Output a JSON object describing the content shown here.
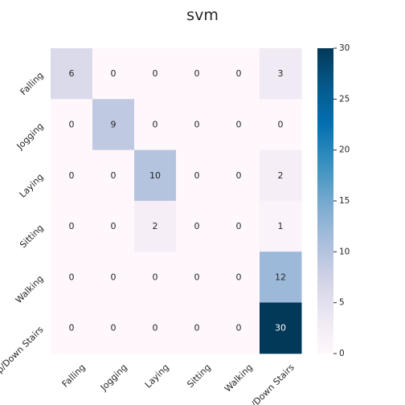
{
  "chart_data": {
    "type": "heatmap",
    "title": "svm",
    "xlabel": "",
    "ylabel": "",
    "x_categories": [
      "Falling",
      "Jogging",
      "Laying",
      "Sitting",
      "Walking",
      "Up/Down Stairs"
    ],
    "y_categories": [
      "Falling",
      "Jogging",
      "Laying",
      "Sitting",
      "Walking",
      "Up/Down Stairs"
    ],
    "values": [
      [
        6,
        0,
        0,
        0,
        0,
        3
      ],
      [
        0,
        9,
        0,
        0,
        0,
        0
      ],
      [
        0,
        0,
        10,
        0,
        0,
        2
      ],
      [
        0,
        0,
        2,
        0,
        0,
        1
      ],
      [
        0,
        0,
        0,
        0,
        0,
        12
      ],
      [
        0,
        0,
        0,
        0,
        0,
        30
      ]
    ],
    "colorbar": {
      "min": 0,
      "max": 30,
      "ticks": [
        0,
        5,
        10,
        15,
        20,
        25,
        30
      ],
      "colormap": "PuBu"
    },
    "colors": {
      "low": "#fff7fb",
      "high": "#023858",
      "text_dark": "#262626",
      "text_light": "#ffffff"
    }
  }
}
